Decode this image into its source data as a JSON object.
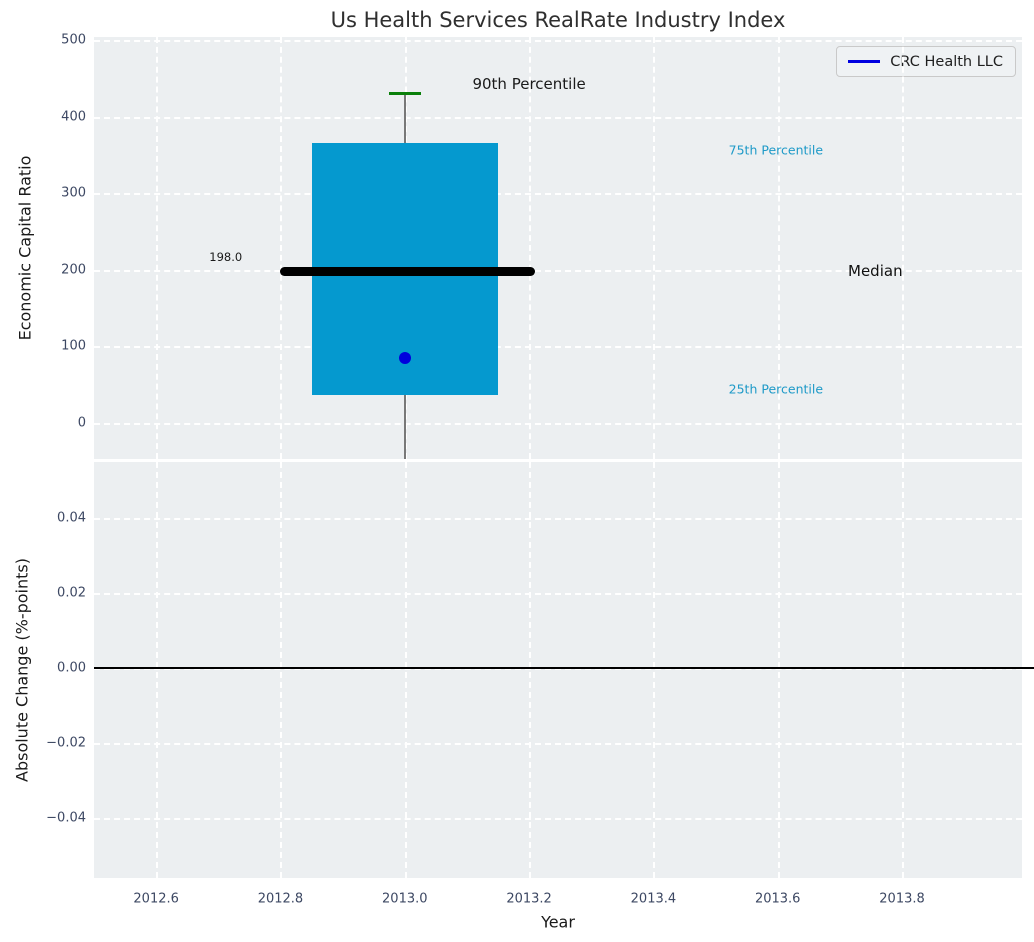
{
  "title": "Us Health Services RealRate Industry Index",
  "legend": {
    "label": "CRC Health LLC",
    "line_color": "#0000e0"
  },
  "colors": {
    "axes_background": "#eceff1",
    "gridline": "#ffffff",
    "box_fill": "#0599cf",
    "median_line": "#000000",
    "whisker": "#787878",
    "whisker_cap": "#0a800a",
    "company_point": "#0000dd",
    "percentile_label": "#1e9ac8",
    "tick_label": "#3d4863",
    "zero_line": "#000000"
  },
  "chart_data": {
    "type": "boxplot",
    "title": "Us Health Services RealRate Industry Index",
    "xlabel": "Year",
    "xlim": [
      2012.5,
      2013.993
    ],
    "xticks": [
      {
        "v": 2012.6,
        "label": "2012.6"
      },
      {
        "v": 2012.8,
        "label": "2012.8"
      },
      {
        "v": 2013.0,
        "label": "2013.0"
      },
      {
        "v": 2013.2,
        "label": "2013.2"
      },
      {
        "v": 2013.4,
        "label": "2013.4"
      },
      {
        "v": 2013.6,
        "label": "2013.6"
      },
      {
        "v": 2013.8,
        "label": "2013.8"
      }
    ],
    "grid": true,
    "legend_position": "upper right",
    "subplots": [
      {
        "name": "economic-capital-ratio",
        "ylabel": "Economic Capital Ratio",
        "ylim": [
          -47,
          504
        ],
        "yticks": [
          {
            "v": 0,
            "label": "0"
          },
          {
            "v": 100,
            "label": "100"
          },
          {
            "v": 200,
            "label": "200"
          },
          {
            "v": 300,
            "label": "300"
          },
          {
            "v": 400,
            "label": "400"
          },
          {
            "v": 500,
            "label": "500"
          }
        ],
        "box": {
          "x": 2013.0,
          "x_span": [
            2012.85,
            2013.15
          ],
          "p25": 36,
          "median": 198.0,
          "p75": 365,
          "p90": 430,
          "whisker_low_clipped": true,
          "median_span": [
            2012.8,
            2013.21
          ]
        },
        "company_point": {
          "name": "CRC Health LLC",
          "x": 2013.0,
          "y": 85
        },
        "annotations": [
          {
            "text": "198.0",
            "x": 2012.712,
            "y": 217,
            "color": "#1a1a1a",
            "size": 11.5
          },
          {
            "text": "90th Percentile",
            "x": 2013.2,
            "y": 442,
            "color": "#1a1a1a",
            "size": 15
          },
          {
            "text": "75th Percentile",
            "x": 2013.597,
            "y": 356,
            "color": "#1e9ac8",
            "size": 12.5
          },
          {
            "text": "Median",
            "x": 2013.757,
            "y": 198,
            "color": "#111111",
            "size": 15
          },
          {
            "text": "25th Percentile",
            "x": 2013.597,
            "y": 45,
            "color": "#1e9ac8",
            "size": 12.5
          }
        ]
      },
      {
        "name": "absolute-change",
        "ylabel": "Absolute Change (%-points)",
        "ylim": [
          -0.056,
          0.055
        ],
        "yticks": [
          {
            "v": -0.04,
            "label": "−0.04"
          },
          {
            "v": -0.02,
            "label": "−0.02"
          },
          {
            "v": 0.0,
            "label": "0.00"
          },
          {
            "v": 0.02,
            "label": "0.02"
          },
          {
            "v": 0.04,
            "label": "0.04"
          }
        ],
        "zero_line": 0.0,
        "series": []
      }
    ]
  }
}
